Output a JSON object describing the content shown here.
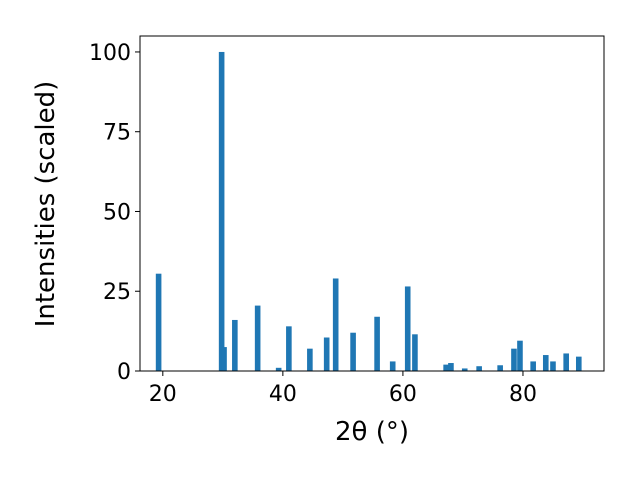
{
  "chart_data": {
    "type": "bar",
    "x_label": "2θ (°)",
    "y_label": "Intensities (scaled)",
    "x": [
      19.3,
      29.8,
      30.2,
      32.0,
      35.8,
      39.3,
      41.0,
      44.5,
      47.3,
      48.8,
      51.7,
      55.7,
      58.3,
      60.8,
      62.0,
      67.2,
      68.0,
      70.3,
      72.7,
      76.2,
      78.5,
      79.5,
      81.7,
      83.8,
      85.0,
      87.2,
      89.3
    ],
    "values": [
      30.5,
      100,
      7.5,
      16,
      20.5,
      1,
      14,
      7,
      10.5,
      29,
      12,
      17,
      3,
      26.5,
      11.5,
      2,
      2.5,
      0.8,
      1.5,
      1.8,
      7,
      9.5,
      3,
      5,
      3,
      5.5,
      4.5
    ],
    "color": "#1f77b4",
    "xlim": [
      16.2,
      93.5
    ],
    "xticks": [
      20,
      40,
      60,
      80
    ],
    "ylim": [
      0,
      105
    ],
    "yticks": [
      0,
      25,
      50,
      75,
      100
    ]
  }
}
